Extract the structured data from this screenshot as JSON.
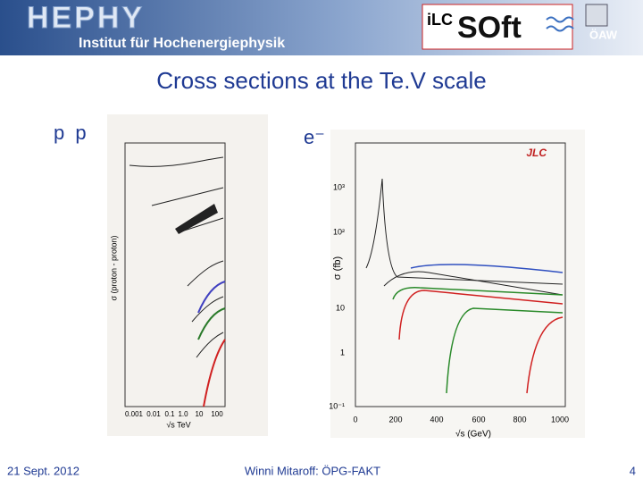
{
  "header": {
    "logo": "HEPHY",
    "institute": "Institut für Hochenergiephysik",
    "ilc_logo": [
      "iLC",
      "SOft"
    ],
    "oaw_logo": "ÖAW"
  },
  "title": "Cross sections at the Te.V scale",
  "panels": [
    {
      "label": "p p",
      "x_axis": "√s   TeV",
      "y_axis": "σ (proton - proton)",
      "x_ticks": [
        "0.001",
        "0.01",
        "0.1",
        "1.0",
        "10",
        "100"
      ]
    },
    {
      "label": "e⁻ e⁺",
      "tag": "JLC",
      "x_axis": "√s (GeV)",
      "y_axis": "σ (fb)",
      "x_ticks": [
        "0",
        "200",
        "400",
        "600",
        "800",
        "1000"
      ],
      "y_ticks": [
        "10³",
        "10²",
        "10",
        "1",
        "10⁻¹"
      ]
    }
  ],
  "footer": {
    "date": "21 Sept. 2012",
    "author": "Winni Mitaroff: ÖPG-FAKT",
    "page": "4"
  }
}
